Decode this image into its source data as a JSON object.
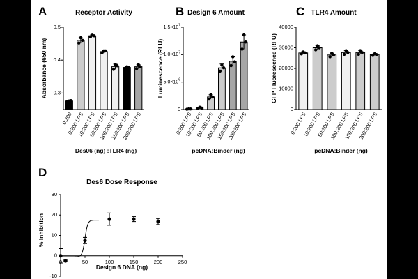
{
  "panel_letters": [
    "A",
    "B",
    "C",
    "D"
  ],
  "colors": {
    "background": "#000000",
    "panel": "#ffffff",
    "black_bar": "#000000",
    "light_bar": "#f0f0f0",
    "mid_bar": "#cccccc",
    "dark_bar": "#a6a6a6",
    "ink": "#000000"
  },
  "chart_data": [
    {
      "id": "A",
      "type": "bar",
      "title": "Receptor Activity",
      "xlabel": "Des06 (ng) :TLR4 (ng)",
      "ylabel": "Absorbance (650 nm)",
      "ylim": [
        0.25,
        0.5
      ],
      "yticks": [
        0.3,
        0.4,
        0.5
      ],
      "ytick_labels": [
        "0.3",
        "0.4",
        "0.5"
      ],
      "categories": [
        "0:200",
        "0:200 LPS",
        "10:200 LPS",
        "50:200 LPS",
        "100:200 LPS",
        "150:200 LPS",
        "200:200 LPS"
      ],
      "values": [
        0.276,
        0.46,
        0.474,
        0.426,
        0.38,
        0.378,
        0.38
      ],
      "errors": [
        0.002,
        0.008,
        0.003,
        0.004,
        0.008,
        0.003,
        0.006
      ],
      "points": [
        [
          0.274,
          0.276,
          0.277
        ],
        [
          0.452,
          0.468,
          0.46
        ],
        [
          0.471,
          0.476,
          0.474
        ],
        [
          0.422,
          0.428,
          0.428
        ],
        [
          0.372,
          0.386,
          0.383
        ],
        [
          0.375,
          0.38,
          0.378
        ],
        [
          0.374,
          0.386,
          0.38
        ]
      ],
      "bar_colors": [
        "black",
        "mid",
        "light",
        "light",
        "light",
        "black",
        "dark"
      ]
    },
    {
      "id": "B",
      "type": "bar",
      "title": "Design 6 Amount",
      "xlabel": "pcDNA:Binder (ng)",
      "ylabel": "Luminescence (RLU)",
      "ylim": [
        0,
        15000000
      ],
      "yticks": [
        0,
        5000000,
        10000000,
        15000000
      ],
      "ytick_labels": [
        "0",
        "5.0×10^6",
        "1.0×10^7",
        "1.5×10^7"
      ],
      "categories": [
        "0:200 LPS",
        "10:200 LPS",
        "50:200 LPS",
        "100:200 LPS",
        "150:200 LPS",
        "200:200 LPS"
      ],
      "values": [
        100000,
        300000,
        2300000,
        7600000,
        8800000,
        12300000
      ],
      "errors": [
        80000,
        150000,
        400000,
        700000,
        800000,
        1300000
      ],
      "points": [
        [
          60000,
          120000,
          100000
        ],
        [
          200000,
          420000,
          280000
        ],
        [
          1900000,
          2700000,
          2300000
        ],
        [
          7000000,
          8100000,
          7600000
        ],
        [
          8000000,
          9600000,
          8700000
        ],
        [
          11000000,
          13600000,
          12300000
        ]
      ],
      "bar_colors": [
        "white",
        "white",
        "mid",
        "mid",
        "dark",
        "dark"
      ]
    },
    {
      "id": "C",
      "type": "bar",
      "title": "TLR4  Amount",
      "xlabel": "pcDNA:Binder (ng)",
      "ylabel": "GFP Fluorescence (RFU)",
      "ylim": [
        0,
        40000
      ],
      "yticks": [
        0,
        10000,
        20000,
        30000,
        40000
      ],
      "ytick_labels": [
        "0",
        "10000",
        "20000",
        "30000",
        "40000"
      ],
      "categories": [
        "0:200 LPS",
        "10:200 LPS",
        "50:200 LPS",
        "100:200 LPS",
        "150:200 LPS",
        "200:200 LPS"
      ],
      "values": [
        27500,
        30000,
        26500,
        27700,
        27700,
        26700
      ],
      "errors": [
        600,
        1000,
        900,
        900,
        900,
        400
      ],
      "points": [
        [
          27000,
          28000,
          27500
        ],
        [
          29000,
          31000,
          30000
        ],
        [
          25600,
          27400,
          26500
        ],
        [
          26800,
          28600,
          27700
        ],
        [
          26800,
          28600,
          27700
        ],
        [
          26300,
          27100,
          26700
        ]
      ],
      "bar_colors": [
        "light",
        "mid",
        "mid",
        "light",
        "mid",
        "mid"
      ]
    },
    {
      "id": "D",
      "type": "scatter",
      "title": "Des6 Dose Response",
      "xlabel": "Design 6 DNA  (ng)",
      "ylabel": "% Inhibition",
      "xlim": [
        0,
        250
      ],
      "ylim": [
        -10,
        30
      ],
      "xticks": [
        0,
        50,
        100,
        150,
        200,
        250
      ],
      "yticks": [
        -10,
        0,
        10,
        20,
        30
      ],
      "x": [
        0,
        10,
        50,
        100,
        150,
        200
      ],
      "y": [
        0,
        -2.5,
        7.5,
        18,
        18,
        16.8
      ],
      "errors": [
        3.5,
        0.4,
        1.5,
        3,
        1.2,
        1.5
      ],
      "fit": {
        "model": "sigmoid",
        "bottom": -0.5,
        "top": 17.5,
        "ec50": 50,
        "hill_slope": 0.35
      }
    }
  ]
}
